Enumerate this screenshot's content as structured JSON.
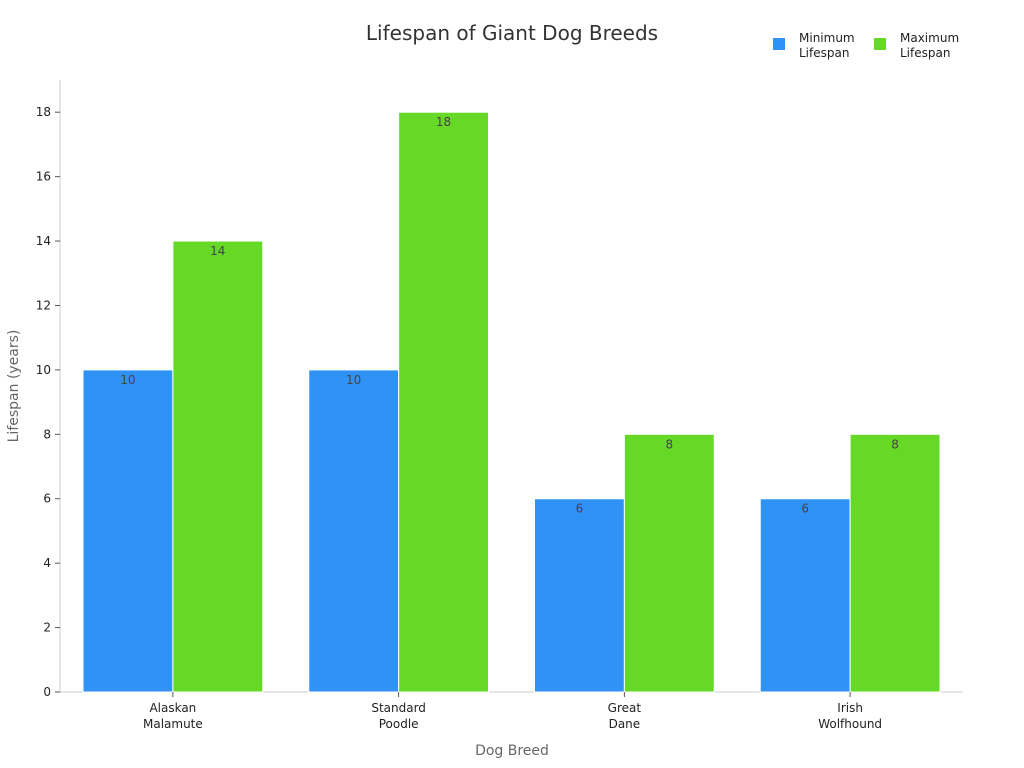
{
  "chart_data": {
    "type": "bar",
    "title": "Lifespan of Giant Dog Breeds",
    "xlabel": "Dog Breed",
    "ylabel": "Lifespan (years)",
    "categories": [
      [
        "Alaskan",
        "Malamute"
      ],
      [
        "Standard",
        "Poodle"
      ],
      [
        "Great",
        "Dane"
      ],
      [
        "Irish",
        "Wolfhound"
      ]
    ],
    "series": [
      {
        "name": [
          "Minimum",
          "Lifespan"
        ],
        "values": [
          10,
          10,
          6,
          6
        ],
        "color": "#3192f6"
      },
      {
        "name": [
          "Maximum",
          "Lifespan"
        ],
        "values": [
          14,
          18,
          8,
          8
        ],
        "color": "#66d926"
      }
    ],
    "ylim": [
      0,
      19
    ],
    "yticks": [
      0,
      2,
      4,
      6,
      8,
      10,
      12,
      14,
      16,
      18
    ],
    "grid": false,
    "legend_position": "top-right",
    "data_labels": true
  }
}
